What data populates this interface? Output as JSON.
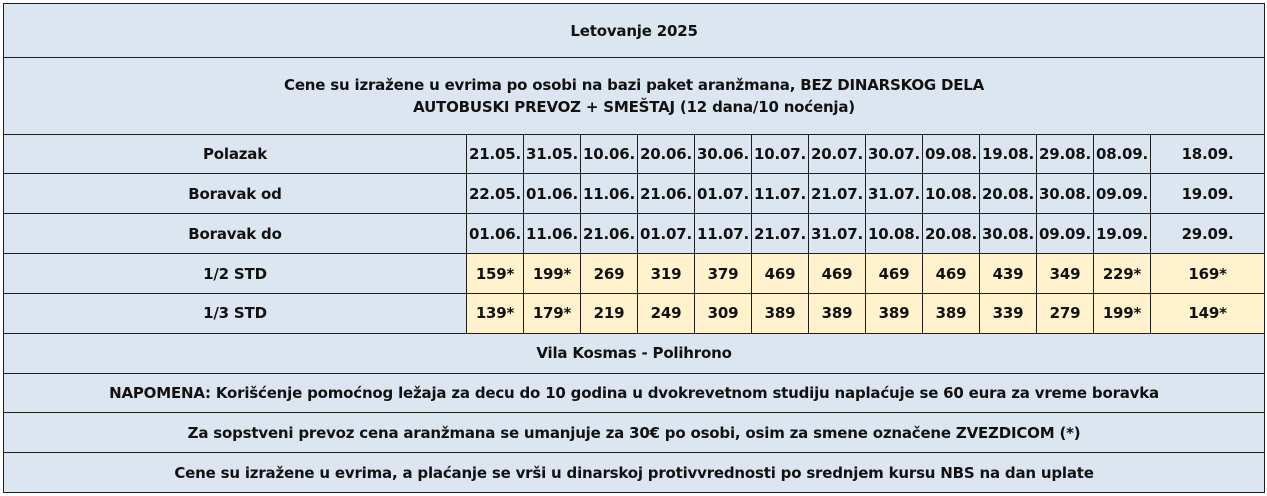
{
  "title": "Letovanje 2025",
  "intro": {
    "line1": "Cene su izražene u evrima po osobi na bazi paket aranžmana, BEZ DINARSKOG DELA",
    "line2": "AUTOBUSKI PREVOZ + SMEŠTAJ (12 dana/10 noćenja)"
  },
  "rows": {
    "polazak": {
      "label": "Polazak",
      "cells": [
        "21.05.",
        "31.05.",
        "10.06.",
        "20.06.",
        "30.06.",
        "10.07.",
        "20.07.",
        "30.07.",
        "09.08.",
        "19.08.",
        "29.08.",
        "08.09.",
        "18.09."
      ]
    },
    "boravak_od": {
      "label": "Boravak od",
      "cells": [
        "22.05.",
        "01.06.",
        "11.06.",
        "21.06.",
        "01.07.",
        "11.07.",
        "21.07.",
        "31.07.",
        "10.08.",
        "20.08.",
        "30.08.",
        "09.09.",
        "19.09."
      ]
    },
    "boravak_do": {
      "label": "Boravak do",
      "cells": [
        "01.06.",
        "11.06.",
        "21.06.",
        "01.07.",
        "11.07.",
        "21.07.",
        "31.07.",
        "10.08.",
        "20.08.",
        "30.08.",
        "09.09.",
        "19.09.",
        "29.09."
      ]
    },
    "std_1_2": {
      "label": "1/2 STD",
      "cells": [
        "159*",
        "199*",
        "269",
        "319",
        "379",
        "469",
        "469",
        "469",
        "469",
        "439",
        "349",
        "229*",
        "169*"
      ]
    },
    "std_1_3": {
      "label": "1/3 STD",
      "cells": [
        "139*",
        "179*",
        "219",
        "249",
        "309",
        "389",
        "389",
        "389",
        "389",
        "339",
        "279",
        "199*",
        "149*"
      ]
    }
  },
  "hotel_name": "Vila Kosmas - Polihrono",
  "notes": {
    "napomena": "NAPOMENA: Korišćenje pomoćnog ležaja za decu do 10 godina u dvokrevetnom studiju naplaćuje se 60 eura za vreme boravka",
    "own_transport": "Za sopstveni prevoz cena aranžmana se umanjuje za 30€ po osobi, osim za smene označene ZVEZDICOM (*)",
    "payment": "Cene su izražene u evrima, a plaćanje se vrši u dinarskoj protivvrednosti po srednjem kursu NBS na dan uplate"
  },
  "colors": {
    "cell_blue": "#dce6f1",
    "price_yellow": "#fff2cc",
    "border": "#1f1f1f"
  }
}
